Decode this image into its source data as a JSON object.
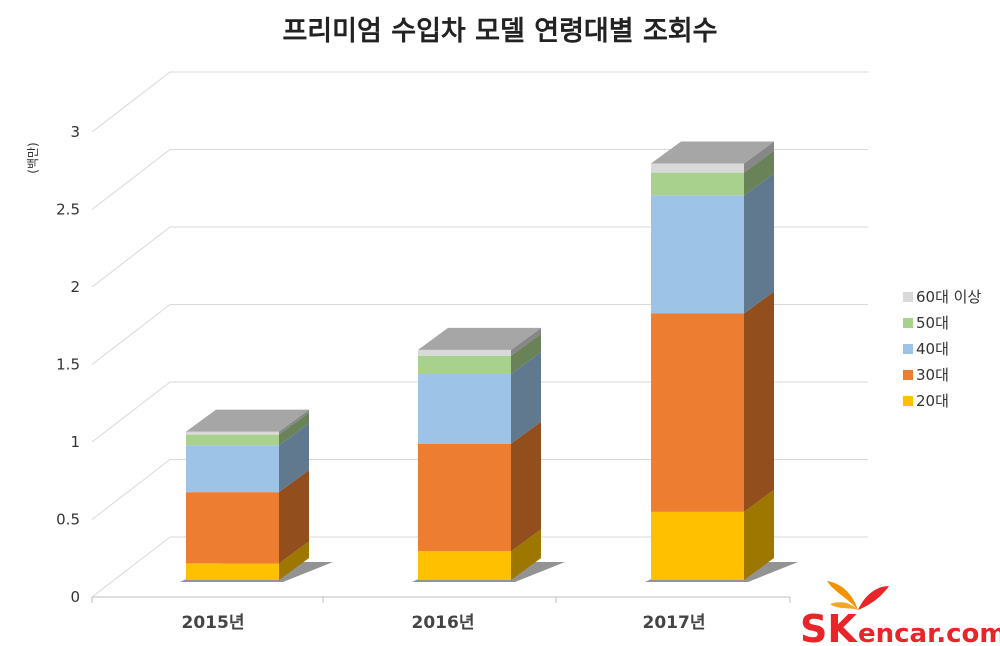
{
  "chart_data": {
    "type": "bar",
    "stacked": true,
    "three_d": true,
    "title": "프리미엄 수입차 모델 연령대별 조회수",
    "ylabel": "(백만)",
    "xlabel": "",
    "categories": [
      "2015년",
      "2016년",
      "2017년"
    ],
    "ylim": [
      0,
      3
    ],
    "yticks": [
      "0",
      "0.5",
      "1",
      "1.5",
      "2",
      "2.5",
      "3"
    ],
    "grid": true,
    "legend_position": "right",
    "series": [
      {
        "name": "20대",
        "color": "#ffc000",
        "values": [
          0.11,
          0.19,
          0.45
        ]
      },
      {
        "name": "30대",
        "color": "#ed7d31",
        "values": [
          0.47,
          0.71,
          1.31
        ]
      },
      {
        "name": "40대",
        "color": "#9dc3e6",
        "values": [
          0.31,
          0.46,
          0.78
        ]
      },
      {
        "name": "50대",
        "color": "#a9d18e",
        "values": [
          0.07,
          0.12,
          0.15
        ]
      },
      {
        "name": "60대 이상",
        "color": "#d9d9d9",
        "values": [
          0.02,
          0.04,
          0.06
        ]
      }
    ]
  },
  "brand": {
    "sk": "SK",
    "name": "encar.com"
  }
}
